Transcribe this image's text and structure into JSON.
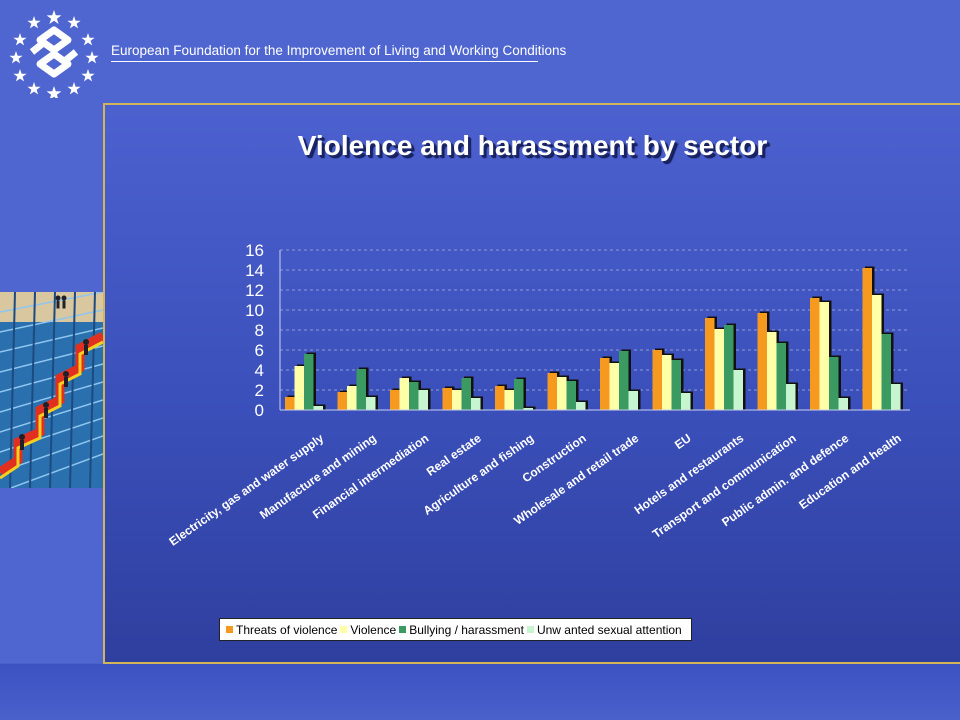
{
  "header": {
    "org_name": "European Foundation for the Improvement of Living and Working Conditions"
  },
  "colors": {
    "threats": "#f59a1f",
    "violence": "#ffffa8",
    "bullying": "#3a9a62",
    "sexual": "#c7f5cf"
  },
  "chart_data": {
    "type": "bar",
    "title": "Violence and harassment by sector",
    "xlabel": "",
    "ylabel": "",
    "ylim": [
      0,
      16
    ],
    "yticks": [
      "0",
      "2",
      "4",
      "6",
      "8",
      "10",
      "12",
      "14",
      "16"
    ],
    "grid": true,
    "legend_position": "bottom",
    "categories": [
      "Electricity, gas and water supply",
      "Manufacture and mining",
      "Financial intermediation",
      "Real estate",
      "Agriculture and fishing",
      "Construction",
      "Wholesale and retail trade",
      "EU",
      "Hotels and restaurants",
      "Transport and communication",
      "Public admin. and defence",
      "Education and health"
    ],
    "series": [
      {
        "name": "Threats of violence",
        "color": "#f59a1f",
        "values": [
          1.3,
          1.8,
          2.0,
          2.2,
          2.4,
          3.7,
          5.2,
          6.0,
          9.2,
          9.7,
          11.2,
          14.2
        ]
      },
      {
        "name": "Violence",
        "color": "#ffffa8",
        "values": [
          4.4,
          2.4,
          3.2,
          2.0,
          2.0,
          3.3,
          4.7,
          5.5,
          8.1,
          7.8,
          10.8,
          11.5
        ]
      },
      {
        "name": "Bullying / harassment",
        "color": "#3a9a62",
        "values": [
          5.6,
          4.1,
          2.8,
          3.2,
          3.1,
          2.9,
          5.9,
          5.0,
          8.5,
          6.7,
          5.3,
          7.6
        ]
      },
      {
        "name": "Unw anted sexual attention",
        "color": "#c7f5cf",
        "values": [
          0.4,
          1.3,
          2.0,
          1.2,
          0.2,
          0.8,
          1.9,
          1.7,
          4.0,
          2.6,
          1.2,
          2.6
        ]
      }
    ]
  }
}
